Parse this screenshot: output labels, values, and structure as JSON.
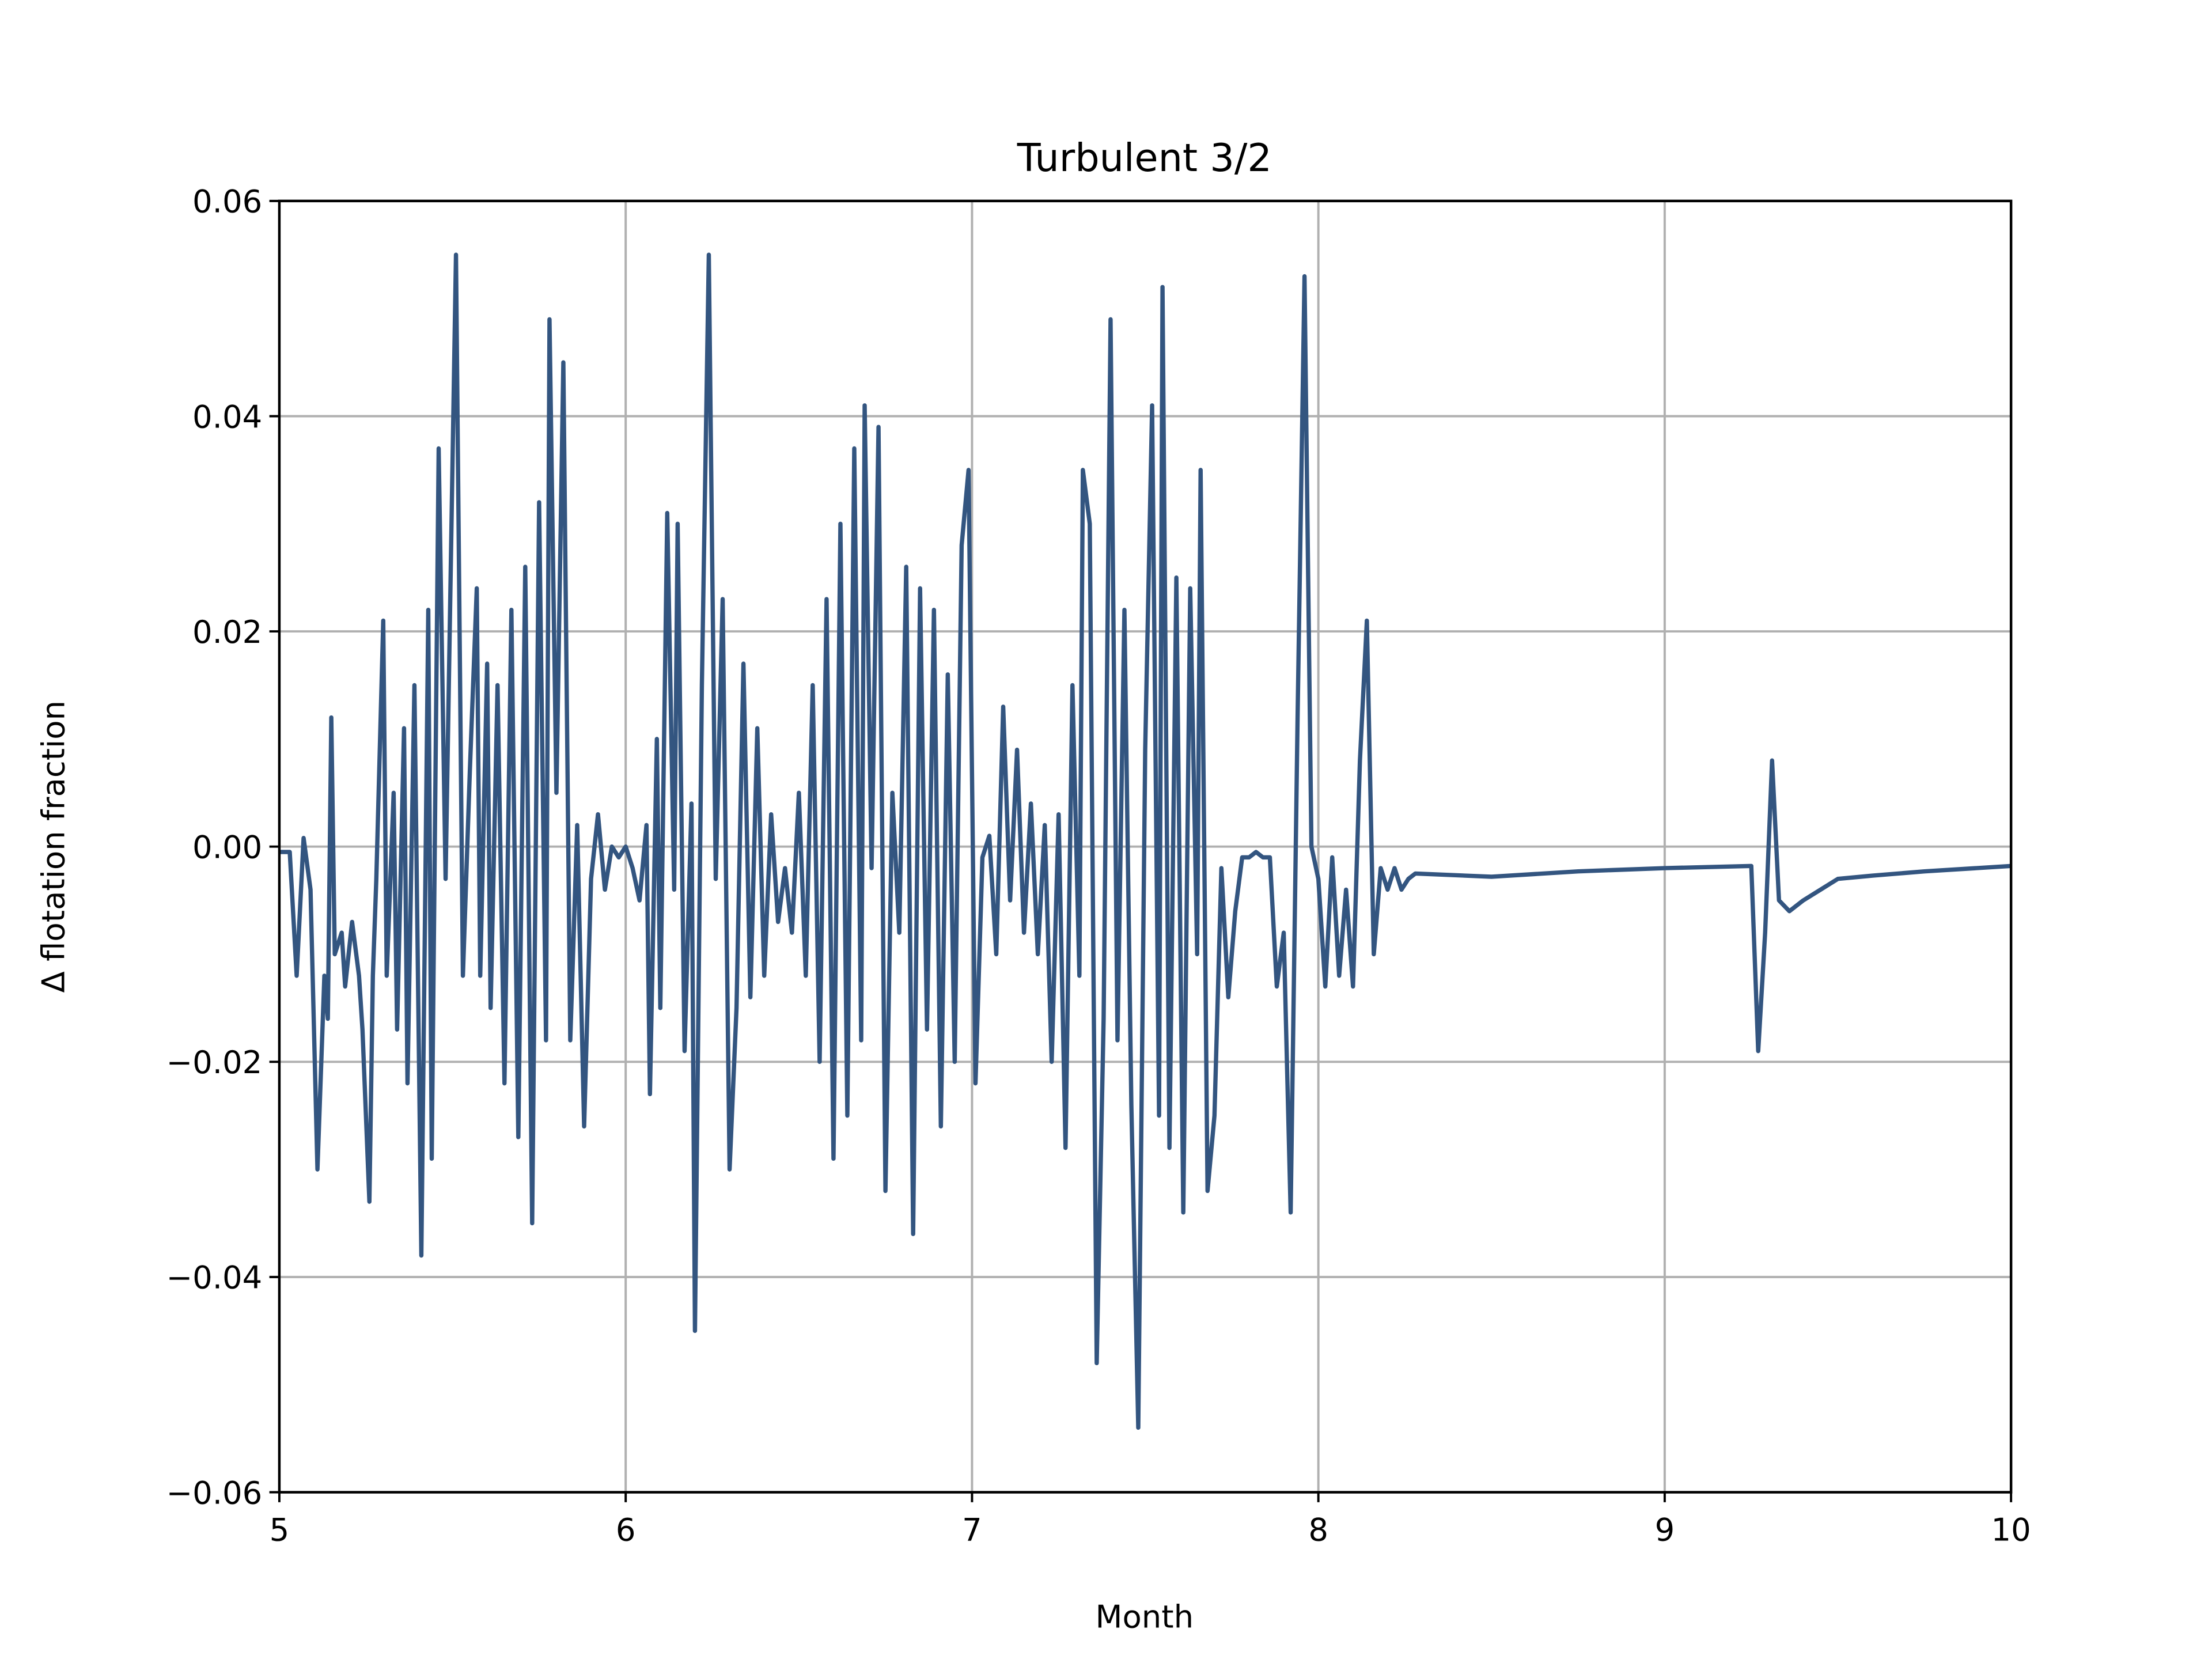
{
  "chart_data": {
    "type": "line",
    "title": "Turbulent 3/2",
    "xlabel": "Month",
    "ylabel": "Δ flotation fraction",
    "xlim": [
      5,
      10
    ],
    "xticks": [
      5,
      6,
      7,
      8,
      9,
      10
    ],
    "ylim": [
      -0.06,
      0.06
    ],
    "yticks": [
      {
        "value": -0.06,
        "label": "−0.06"
      },
      {
        "value": -0.04,
        "label": "−0.04"
      },
      {
        "value": -0.02,
        "label": "−0.02"
      },
      {
        "value": 0,
        "label": "0.00"
      },
      {
        "value": 0.02,
        "label": "0.02"
      },
      {
        "value": 0.04,
        "label": "0.04"
      },
      {
        "value": 0.06,
        "label": "0.06"
      }
    ],
    "grid": true,
    "series": [
      {
        "color": "#335580",
        "x": [
          5.0,
          5.03,
          5.05,
          5.07,
          5.09,
          5.11,
          5.13,
          5.14,
          5.15,
          5.16,
          5.18,
          5.19,
          5.21,
          5.23,
          5.24,
          5.26,
          5.27,
          5.28,
          5.3,
          5.31,
          5.33,
          5.34,
          5.36,
          5.37,
          5.39,
          5.41,
          5.43,
          5.44,
          5.46,
          5.48,
          5.51,
          5.53,
          5.55,
          5.57,
          5.58,
          5.6,
          5.61,
          5.63,
          5.65,
          5.67,
          5.69,
          5.71,
          5.73,
          5.75,
          5.77,
          5.78,
          5.8,
          5.82,
          5.84,
          5.86,
          5.88,
          5.9,
          5.92,
          5.94,
          5.96,
          5.98,
          6.0,
          6.02,
          6.04,
          6.06,
          6.07,
          6.09,
          6.1,
          6.12,
          6.14,
          6.15,
          6.17,
          6.19,
          6.2,
          6.22,
          6.24,
          6.26,
          6.28,
          6.3,
          6.32,
          6.34,
          6.36,
          6.38,
          6.4,
          6.42,
          6.44,
          6.46,
          6.48,
          6.5,
          6.52,
          6.54,
          6.56,
          6.58,
          6.6,
          6.62,
          6.64,
          6.66,
          6.68,
          6.69,
          6.71,
          6.73,
          6.75,
          6.77,
          6.79,
          6.81,
          6.83,
          6.85,
          6.87,
          6.89,
          6.91,
          6.93,
          6.95,
          6.97,
          6.99,
          7.01,
          7.03,
          7.05,
          7.07,
          7.09,
          7.11,
          7.13,
          7.15,
          7.17,
          7.19,
          7.21,
          7.23,
          7.25,
          7.27,
          7.29,
          7.31,
          7.32,
          7.34,
          7.36,
          7.38,
          7.4,
          7.42,
          7.44,
          7.46,
          7.48,
          7.5,
          7.52,
          7.54,
          7.55,
          7.57,
          7.59,
          7.61,
          7.63,
          7.65,
          7.66,
          7.68,
          7.7,
          7.72,
          7.74,
          7.76,
          7.78,
          7.8,
          7.82,
          7.84,
          7.86,
          7.88,
          7.9,
          7.92,
          7.94,
          7.96,
          7.98,
          8.0,
          8.02,
          8.04,
          8.06,
          8.08,
          8.1,
          8.12,
          8.14,
          8.16,
          8.18,
          8.2,
          8.22,
          8.24,
          8.26,
          8.28,
          8.5,
          8.75,
          9.0,
          9.25,
          9.27,
          9.29,
          9.31,
          9.33,
          9.36,
          9.4,
          9.45,
          9.5,
          9.6,
          9.75,
          10.0
        ],
        "values": [
          -0.0005,
          -0.0005,
          -0.012,
          0.0008,
          -0.004,
          -0.03,
          -0.012,
          -0.016,
          0.012,
          -0.01,
          -0.008,
          -0.013,
          -0.007,
          -0.012,
          -0.017,
          -0.033,
          -0.012,
          -0.003,
          0.021,
          -0.012,
          0.005,
          -0.017,
          0.011,
          -0.022,
          0.015,
          -0.038,
          0.022,
          -0.029,
          0.037,
          -0.003,
          0.055,
          -0.012,
          0.007,
          0.024,
          -0.012,
          0.017,
          -0.015,
          0.015,
          -0.022,
          0.022,
          -0.027,
          0.026,
          -0.035,
          0.032,
          -0.018,
          0.049,
          0.005,
          0.045,
          -0.018,
          0.002,
          -0.026,
          -0.003,
          0.003,
          -0.004,
          0.0,
          -0.001,
          0.0,
          -0.002,
          -0.005,
          0.002,
          -0.023,
          0.01,
          -0.015,
          0.031,
          -0.004,
          0.03,
          -0.019,
          0.004,
          -0.045,
          0.015,
          0.055,
          -0.003,
          0.023,
          -0.03,
          -0.015,
          0.017,
          -0.014,
          0.011,
          -0.012,
          0.003,
          -0.007,
          -0.002,
          -0.008,
          0.005,
          -0.012,
          0.015,
          -0.02,
          0.023,
          -0.029,
          0.03,
          -0.025,
          0.037,
          -0.018,
          0.041,
          -0.002,
          0.039,
          -0.032,
          0.005,
          -0.008,
          0.026,
          -0.036,
          0.024,
          -0.017,
          0.022,
          -0.026,
          0.016,
          -0.02,
          0.028,
          0.035,
          -0.022,
          -0.001,
          0.001,
          -0.01,
          0.013,
          -0.005,
          0.009,
          -0.008,
          0.004,
          -0.01,
          0.002,
          -0.02,
          0.003,
          -0.028,
          0.015,
          -0.012,
          0.035,
          0.03,
          -0.048,
          -0.016,
          0.049,
          -0.018,
          0.022,
          -0.024,
          -0.054,
          0.009,
          0.041,
          -0.025,
          0.052,
          -0.028,
          0.025,
          -0.034,
          0.024,
          -0.01,
          0.035,
          -0.032,
          -0.025,
          -0.002,
          -0.014,
          -0.006,
          -0.001,
          -0.001,
          -0.0005,
          -0.001,
          -0.001,
          -0.013,
          -0.008,
          -0.034,
          0.012,
          0.053,
          0.0,
          -0.003,
          -0.013,
          -0.001,
          -0.012,
          -0.004,
          -0.013,
          0.008,
          0.021,
          -0.01,
          -0.002,
          -0.004,
          -0.002,
          -0.004,
          -0.003,
          -0.0025,
          -0.0028,
          -0.0023,
          -0.002,
          -0.0018,
          -0.019,
          -0.008,
          0.008,
          -0.005,
          -0.006,
          -0.005,
          -0.004,
          -0.003,
          -0.0027,
          -0.0023,
          -0.0018
        ]
      }
    ]
  }
}
